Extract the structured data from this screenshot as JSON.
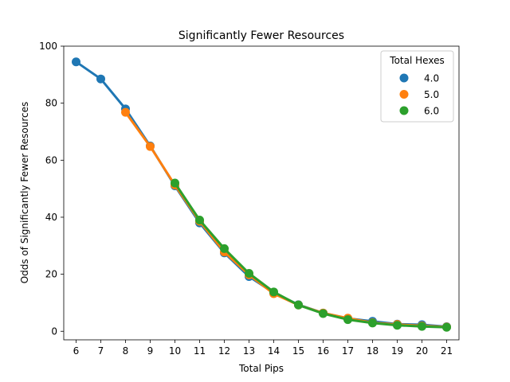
{
  "chart_data": {
    "type": "line",
    "title": "Significantly Fewer Resources",
    "xlabel": "Total Pips",
    "ylabel": "Odds of Significantly Fewer Resources",
    "categories": [
      "6",
      "7",
      "8",
      "9",
      "10",
      "11",
      "12",
      "13",
      "14",
      "15",
      "16",
      "17",
      "18",
      "19",
      "20",
      "21"
    ],
    "ylim": [
      -3,
      100
    ],
    "yticks": [
      0,
      20,
      40,
      60,
      80,
      100
    ],
    "grid": false,
    "legend": {
      "title": "Total Hexes",
      "placement": "top-right"
    },
    "series": [
      {
        "name": "4.0",
        "color": "#1f77b4",
        "values": [
          94.5,
          88.5,
          78.0,
          65.0,
          51.0,
          38.0,
          27.5,
          19.2,
          13.5,
          9.3,
          6.4,
          4.5,
          3.5,
          2.5,
          2.3,
          1.6
        ]
      },
      {
        "name": "5.0",
        "color": "#ff7f0e",
        "values": [
          null,
          null,
          76.8,
          64.8,
          51.3,
          38.6,
          27.8,
          19.8,
          13.2,
          9.2,
          6.4,
          4.6,
          3.0,
          2.4,
          1.9,
          1.5
        ]
      },
      {
        "name": "6.0",
        "color": "#2ca02c",
        "values": [
          null,
          null,
          null,
          null,
          52.0,
          39.0,
          29.0,
          20.3,
          13.8,
          9.2,
          6.2,
          4.1,
          2.9,
          2.1,
          1.7,
          1.4
        ]
      }
    ]
  }
}
